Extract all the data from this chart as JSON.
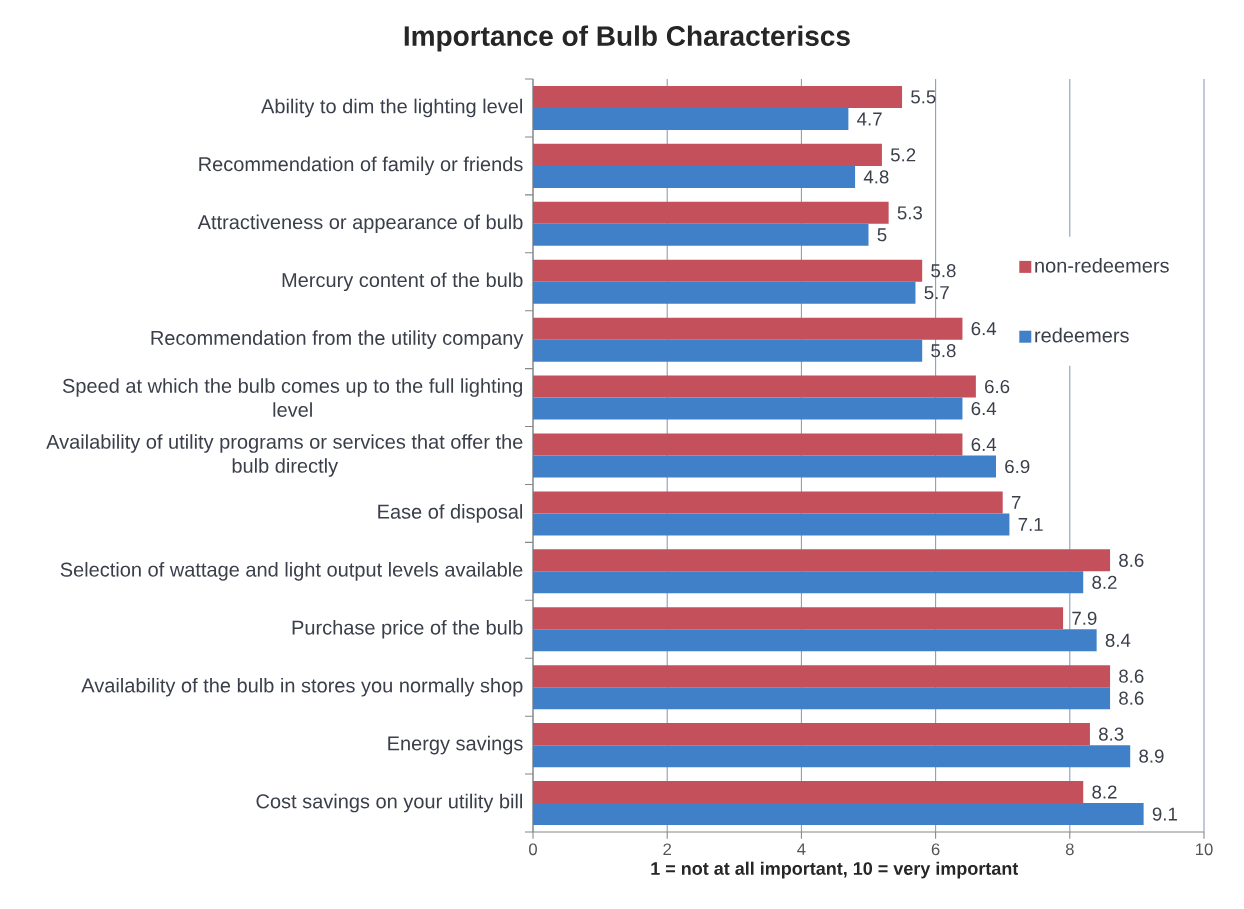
{
  "chart_data": {
    "type": "bar",
    "orientation": "horizontal",
    "title": "Importance of Bulb Characteriscs",
    "xlabel": "1 = not at all important, 10 = very important",
    "categories": [
      "Ability to dim the lighting level",
      "Recommendation of family or friends",
      "Attractiveness or appearance of bulb",
      "Mercury content of the bulb",
      "Recommendation from the utility company",
      "Speed at which the bulb comes up to the full lighting level",
      "Availability of utility programs or services that offer the bulb directly",
      "Ease of disposal",
      "Selection of wattage and light output levels available",
      "Purchase price of the bulb",
      "Availability of the bulb in stores you normally shop",
      "Energy savings",
      "Cost savings on your utility bill"
    ],
    "series": [
      {
        "name": "non-redeemers",
        "color": "#c4505b",
        "values": [
          5.5,
          5.2,
          5.3,
          5.8,
          6.4,
          6.6,
          6.4,
          7,
          8.6,
          7.9,
          8.6,
          8.3,
          8.2
        ]
      },
      {
        "name": "redeemers",
        "color": "#4080c8",
        "values": [
          4.7,
          4.8,
          5,
          5.7,
          5.8,
          6.4,
          6.9,
          7.1,
          8.2,
          8.4,
          8.6,
          8.9,
          9.1
        ]
      }
    ],
    "xlim": [
      0,
      10
    ],
    "xticks": [
      0,
      2,
      4,
      6,
      8,
      10
    ],
    "grid": "x",
    "legend": "right",
    "data_labels": true
  }
}
